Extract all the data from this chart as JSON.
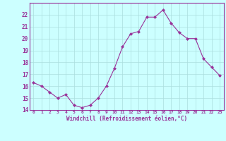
{
  "x": [
    0,
    1,
    2,
    3,
    4,
    5,
    6,
    7,
    8,
    9,
    10,
    11,
    12,
    13,
    14,
    15,
    16,
    17,
    18,
    19,
    20,
    21,
    22,
    23
  ],
  "y": [
    16.3,
    16.0,
    15.5,
    15.0,
    15.3,
    14.4,
    14.2,
    14.4,
    15.0,
    16.0,
    17.5,
    19.3,
    20.4,
    20.6,
    21.8,
    21.8,
    22.4,
    21.3,
    20.5,
    20.0,
    20.0,
    18.3,
    17.6,
    16.9
  ],
  "line_color": "#993399",
  "marker": "D",
  "marker_size": 2,
  "bg_color": "#ccffff",
  "grid_color": "#aadddd",
  "xlabel": "Windchill (Refroidissement éolien,°C)",
  "xlabel_color": "#993399",
  "tick_color": "#993399",
  "ylim": [
    14,
    23
  ],
  "xlim": [
    -0.5,
    23.5
  ],
  "yticks": [
    14,
    15,
    16,
    17,
    18,
    19,
    20,
    21,
    22
  ],
  "xticks": [
    0,
    1,
    2,
    3,
    4,
    5,
    6,
    7,
    8,
    9,
    10,
    11,
    12,
    13,
    14,
    15,
    16,
    17,
    18,
    19,
    20,
    21,
    22,
    23
  ],
  "spine_color": "#993399"
}
